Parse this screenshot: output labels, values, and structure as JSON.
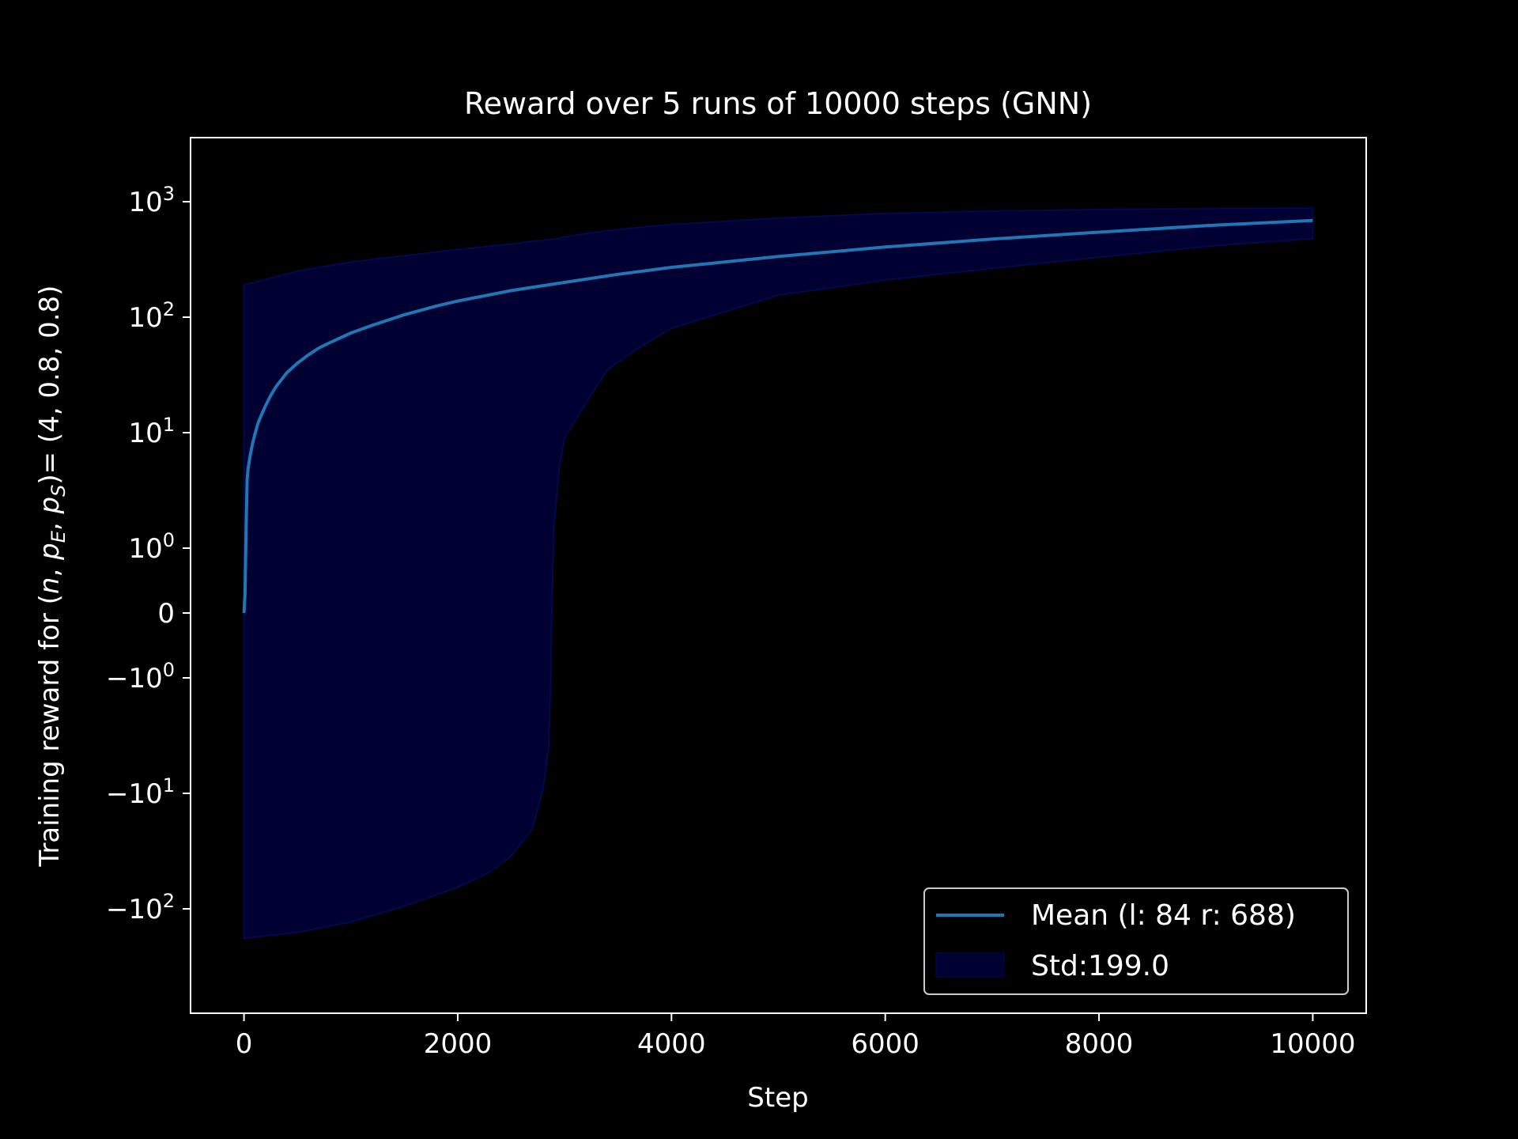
{
  "chart_data": {
    "type": "line",
    "title": "Reward over 5 runs of 10000 steps (GNN)",
    "xlabel": "Step",
    "ylabel": {
      "prefix": "Training reward for ",
      "vars": [
        "n",
        "p",
        "E",
        "p",
        "S"
      ],
      "suffix": "= (4, 0.8, 0.8)"
    },
    "yscale": "symlog",
    "xlim": [
      -500,
      10500
    ],
    "x_ticks": [
      0,
      2000,
      4000,
      6000,
      8000,
      10000
    ],
    "y_ticks": [
      {
        "value": 1000,
        "base": "10",
        "exp": "3"
      },
      {
        "value": 100,
        "base": "10",
        "exp": "2"
      },
      {
        "value": 10,
        "base": "10",
        "exp": "1"
      },
      {
        "value": 1,
        "base": "10",
        "exp": "0"
      },
      {
        "value": 0,
        "base": "0",
        "exp": ""
      },
      {
        "value": -1,
        "base": "−10",
        "exp": "0"
      },
      {
        "value": -10,
        "base": "−10",
        "exp": "1"
      },
      {
        "value": -100,
        "base": "−10",
        "exp": "2"
      }
    ],
    "grid": false,
    "legend": {
      "position": "lower right",
      "entries": [
        {
          "label": "Mean (l: 84 r: 688)",
          "kind": "line"
        },
        {
          "label": "Std:199.0",
          "kind": "patch"
        }
      ]
    },
    "colors": {
      "background": "#000000",
      "mean_line": "#1f77b4",
      "std_fill": "#000033",
      "std_edge": "#000a4d",
      "text": "#ffffff"
    },
    "series": [
      {
        "name": "Mean (l: 84 r: 688)",
        "x": [
          0,
          10,
          20,
          30,
          40,
          60,
          80,
          100,
          130,
          160,
          200,
          250,
          300,
          400,
          500,
          600,
          700,
          800,
          1000,
          1200,
          1500,
          1800,
          2000,
          2500,
          3000,
          3500,
          4000,
          5000,
          6000,
          7000,
          8000,
          9000,
          10000
        ],
        "y": [
          0,
          0.3,
          1.5,
          4,
          5,
          6.5,
          8,
          9.5,
          12,
          14,
          17,
          21,
          25,
          33,
          40,
          47,
          54,
          60,
          73,
          85,
          105,
          125,
          138,
          170,
          200,
          235,
          270,
          335,
          405,
          475,
          545,
          620,
          688
        ]
      },
      {
        "name": "Std:199.0",
        "kind": "band",
        "x": [
          0,
          500,
          1000,
          1500,
          2000,
          2300,
          2500,
          2700,
          2800,
          2850,
          2870,
          2880,
          2900,
          2950,
          3000,
          3200,
          3400,
          3700,
          4000,
          5000,
          6000,
          7000,
          8000,
          9000,
          10000
        ],
        "lower": [
          -180,
          -160,
          -130,
          -95,
          -65,
          -48,
          -35,
          -20,
          -9,
          -4,
          -1,
          0,
          1.5,
          5,
          9,
          18,
          35,
          55,
          80,
          155,
          210,
          265,
          330,
          410,
          480
        ],
        "upper": [
          190,
          250,
          300,
          340,
          385,
          410,
          430,
          455,
          465,
          470,
          472,
          473,
          475,
          485,
          495,
          530,
          560,
          600,
          635,
          720,
          790,
          830,
          855,
          870,
          880
        ]
      }
    ]
  }
}
